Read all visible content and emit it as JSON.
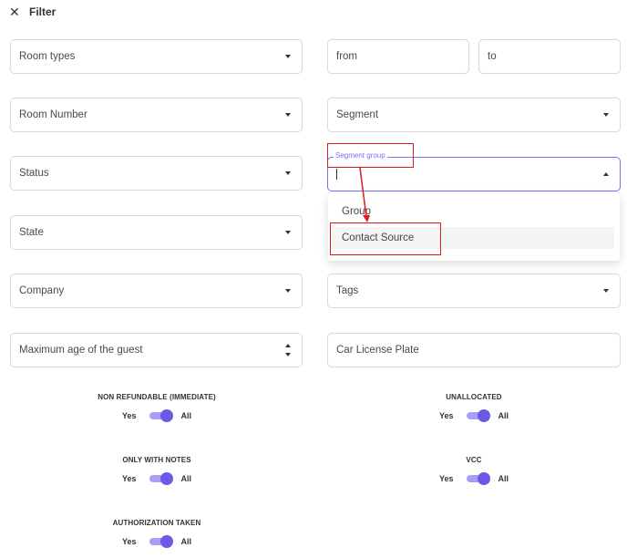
{
  "header": {
    "close_icon": "close-icon",
    "title": "Filter"
  },
  "left_fields": {
    "room_types": "Room types",
    "room_number": "Room Number",
    "status": "Status",
    "state": "State",
    "company": "Company",
    "max_age": "Maximum age of the guest"
  },
  "right_fields": {
    "from": "from",
    "to": "to",
    "segment": "Segment",
    "segment_group": {
      "label": "Segment group",
      "value": ""
    },
    "tags": "Tags",
    "car_license_plate": "Car License Plate"
  },
  "dropdown": {
    "options": [
      "Group",
      "Contact Source"
    ],
    "highlighted_index": 1
  },
  "toggles": {
    "non_refundable": {
      "title": "NON REFUNDABLE (IMMEDIATE)",
      "yes": "Yes",
      "all": "All",
      "state": "all"
    },
    "unallocated": {
      "title": "UNALLOCATED",
      "yes": "Yes",
      "all": "All",
      "state": "all"
    },
    "only_with_notes": {
      "title": "ONLY WITH NOTES",
      "yes": "Yes",
      "all": "All",
      "state": "all"
    },
    "vcc": {
      "title": "VCC",
      "yes": "Yes",
      "all": "All",
      "state": "all"
    },
    "authorization_taken": {
      "title": "AUTHORIZATION TAKEN",
      "yes": "Yes",
      "all": "All",
      "state": "all"
    }
  },
  "colors": {
    "accent": "#6a5ae6",
    "accent_light": "#a79ef5",
    "annotation": "#e01b1b",
    "border": "#d9d9d9"
  }
}
